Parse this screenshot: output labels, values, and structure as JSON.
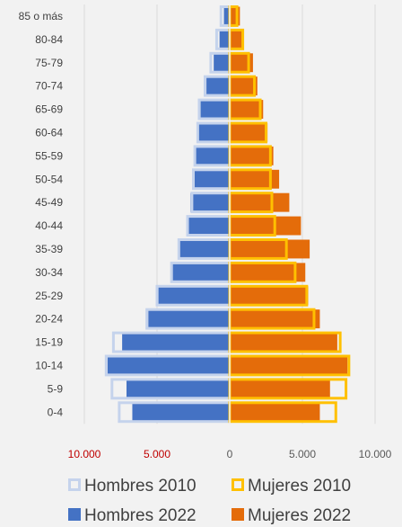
{
  "chart_data": {
    "type": "bar",
    "orientation": "horizontal-butterfly",
    "categories": [
      "0-4",
      "5-9",
      "10-14",
      "15-19",
      "20-24",
      "25-29",
      "30-34",
      "35-39",
      "40-44",
      "45-49",
      "50-54",
      "55-59",
      "60-64",
      "65-69",
      "70-74",
      "75-79",
      "80-84",
      "85 o más"
    ],
    "series": [
      {
        "name": "Hombres 2010",
        "side": "left",
        "style": "outline",
        "color": "#c5d3ec",
        "values": [
          7600,
          8100,
          8500,
          8000,
          5700,
          5000,
          4000,
          3500,
          2900,
          2600,
          2500,
          2400,
          2200,
          2100,
          1700,
          1300,
          900,
          600
        ]
      },
      {
        "name": "Mujeres 2010",
        "side": "right",
        "style": "outline",
        "color": "#ffc000",
        "values": [
          7300,
          8000,
          8200,
          7600,
          5800,
          5300,
          4500,
          3900,
          3100,
          2900,
          2800,
          2800,
          2500,
          2100,
          1700,
          1300,
          900,
          500
        ]
      },
      {
        "name": "Hombres 2022",
        "side": "left",
        "style": "filled",
        "color": "#4472c4",
        "values": [
          6700,
          7100,
          8400,
          7400,
          5600,
          4900,
          4000,
          3500,
          2900,
          2700,
          2500,
          2400,
          2200,
          2000,
          1600,
          1100,
          700,
          400
        ]
      },
      {
        "name": "Mujeres 2022",
        "side": "right",
        "style": "filled",
        "color": "#e46c0a",
        "values": [
          6200,
          6900,
          8100,
          7400,
          6200,
          5400,
          5200,
          5500,
          4900,
          4100,
          3400,
          3000,
          2600,
          2300,
          1900,
          1600,
          900,
          700
        ]
      }
    ],
    "x_ticks": [
      {
        "value": -10000,
        "label": "10.000",
        "color": "#c00000"
      },
      {
        "value": -5000,
        "label": "5.000",
        "color": "#c00000"
      },
      {
        "value": 0,
        "label": "0",
        "color": "#595959"
      },
      {
        "value": 5000,
        "label": "5.000",
        "color": "#595959"
      },
      {
        "value": 10000,
        "label": "10.000",
        "color": "#595959"
      }
    ],
    "xlim": [
      -10000,
      10000
    ],
    "grid": "vertical",
    "legend_position": "bottom"
  }
}
